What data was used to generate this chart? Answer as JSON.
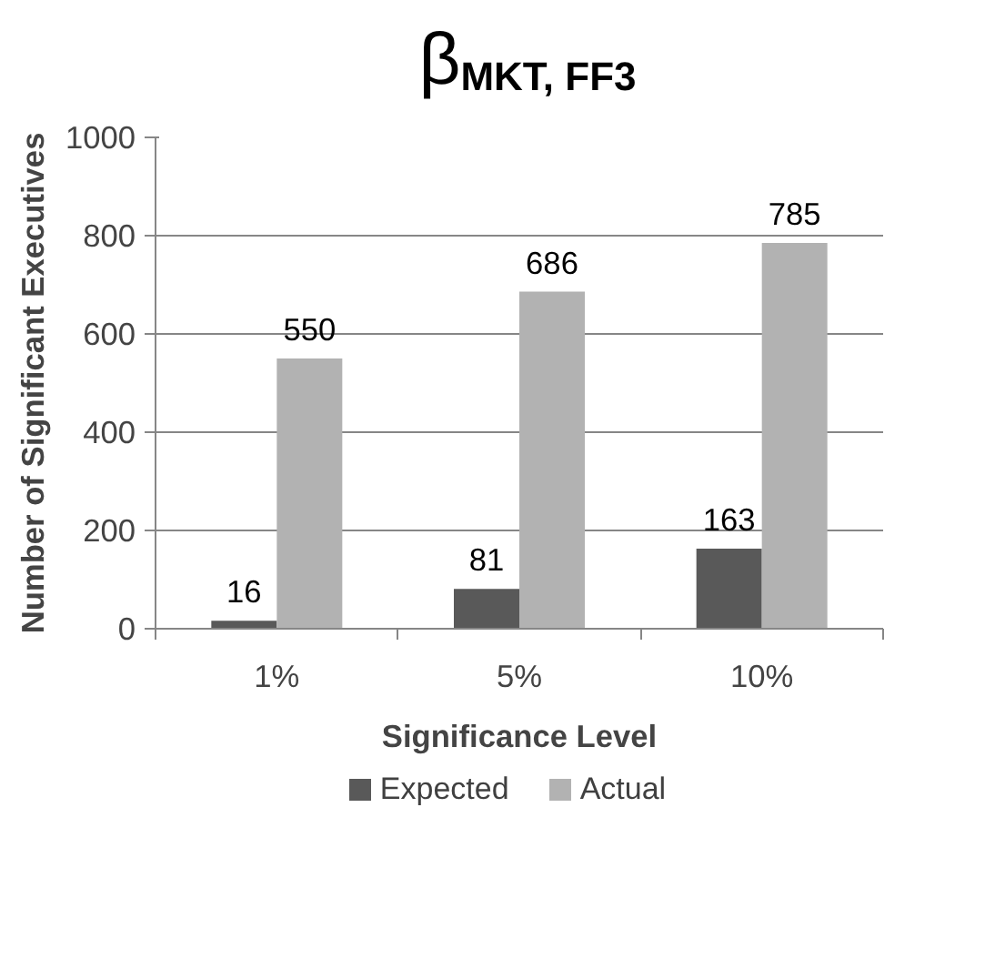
{
  "chart_data": {
    "type": "bar",
    "title": "β$_{MKT, FF3}$",
    "xlabel": "Significance Level",
    "ylabel": "Number of Significant Executives",
    "categories": [
      "1%",
      "5%",
      "10%"
    ],
    "series": [
      {
        "name": "Expected",
        "color": "#595959",
        "values": [
          16,
          81,
          163
        ]
      },
      {
        "name": "Actual",
        "color": "#b2b2b2",
        "values": [
          550,
          686,
          785
        ]
      }
    ],
    "ylim": [
      0,
      1000
    ],
    "yticks": [
      0,
      200,
      400,
      600,
      800,
      1000
    ],
    "grid": "y",
    "legend": "bottom",
    "data_labels": true
  }
}
